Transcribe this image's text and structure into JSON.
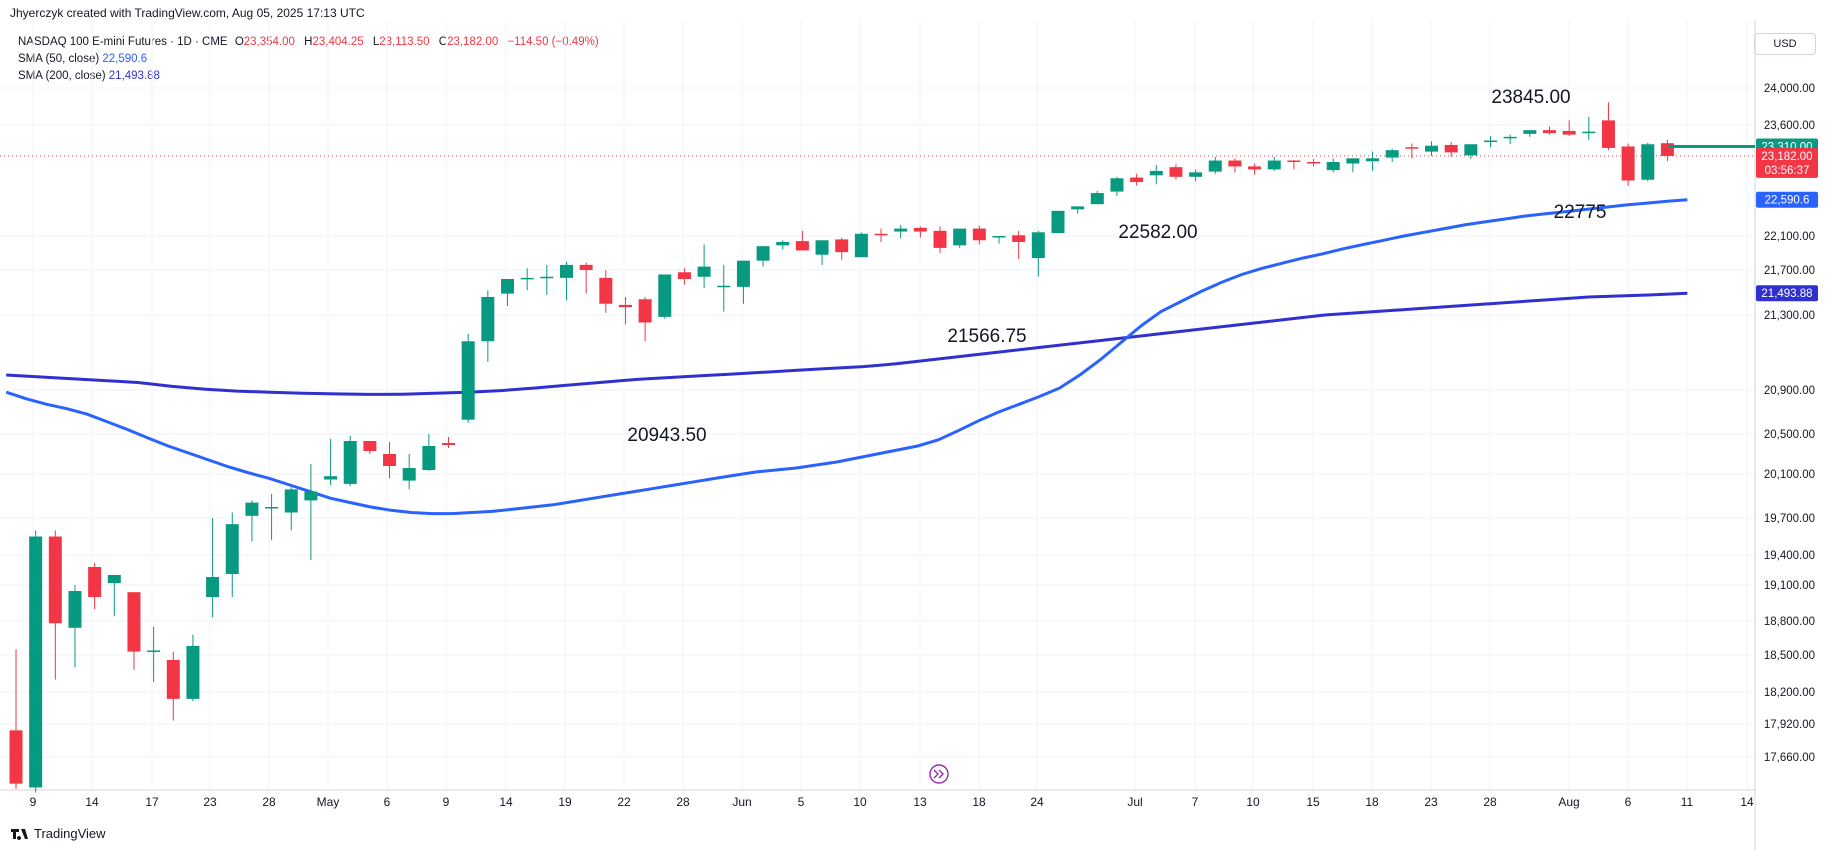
{
  "header": {
    "text": "Jhyerczyk created with TradingView.com, Aug 05, 2025 17:13 UTC"
  },
  "legend": {
    "symbol": "NASDAQ 100 E-mini Futures · 1D · CME",
    "open_label": "O",
    "open": "23,354.00",
    "high_label": "H",
    "high": "23,404.25",
    "low_label": "L",
    "low": "23,113.50",
    "close_label": "C",
    "close": "23,182.00",
    "change": "−114.50 (−0.49%)",
    "sma50_label": "SMA (50, close)",
    "sma50_value": "22,590.6",
    "sma200_label": "SMA (200, close)",
    "sma200_value": "21,493.88"
  },
  "currency": "USD",
  "footer": {
    "brand": "TradingView"
  },
  "colors": {
    "up": "#089981",
    "down": "#f23645",
    "sma50": "#2962ff",
    "sma200": "#3030d0",
    "grid": "#f0f3fa"
  },
  "chart_data": {
    "type": "candlestick",
    "y_axis_ticks": [
      24000,
      23600,
      22100,
      21700,
      21300,
      20900,
      20500,
      20100,
      19700,
      19400,
      19100,
      18800,
      18500,
      18200,
      17920,
      17660
    ],
    "y_axis_tick_labels": [
      "24,000.00",
      "23,600.00",
      "22,100.00",
      "21,700.00",
      "21,300.00",
      "20,900.00",
      "20,500.00",
      "20,100.00",
      "19,700.00",
      "19,400.00",
      "19,100.00",
      "18,800.00",
      "18,500.00",
      "18,200.00",
      "17,920.00",
      "17,660.00"
    ],
    "x_axis_labels": [
      "9",
      "14",
      "17",
      "23",
      "28",
      "May",
      "6",
      "9",
      "14",
      "19",
      "22",
      "28",
      "Jun",
      "5",
      "10",
      "13",
      "18",
      "24",
      "Jul",
      "7",
      "10",
      "15",
      "18",
      "23",
      "28",
      "Aug",
      "6",
      "11",
      "14"
    ],
    "candles": [
      {
        "o": 17870,
        "h": 18550,
        "l": 17410,
        "c": 17450
      },
      {
        "o": 17420,
        "h": 19600,
        "l": 17380,
        "c": 19550
      },
      {
        "o": 19550,
        "h": 19600,
        "l": 18300,
        "c": 18780
      },
      {
        "o": 18740,
        "h": 19100,
        "l": 18400,
        "c": 19050
      },
      {
        "o": 19280,
        "h": 19320,
        "l": 18900,
        "c": 19000
      },
      {
        "o": 19120,
        "h": 19200,
        "l": 18840,
        "c": 19200
      },
      {
        "o": 19040,
        "h": 19040,
        "l": 18380,
        "c": 18530
      },
      {
        "o": 18540,
        "h": 18750,
        "l": 18280,
        "c": 18540
      },
      {
        "o": 18460,
        "h": 18530,
        "l": 17950,
        "c": 18140
      },
      {
        "o": 18140,
        "h": 18680,
        "l": 18120,
        "c": 18580
      },
      {
        "o": 19000,
        "h": 19700,
        "l": 18830,
        "c": 19180
      },
      {
        "o": 19210,
        "h": 19750,
        "l": 19000,
        "c": 19650
      },
      {
        "o": 19720,
        "h": 19860,
        "l": 19510,
        "c": 19840
      },
      {
        "o": 19800,
        "h": 19920,
        "l": 19520,
        "c": 19800
      },
      {
        "o": 19750,
        "h": 19980,
        "l": 19600,
        "c": 19960
      },
      {
        "o": 19860,
        "h": 20200,
        "l": 19350,
        "c": 19940
      },
      {
        "o": 20050,
        "h": 20450,
        "l": 20000,
        "c": 20080
      },
      {
        "o": 20010,
        "h": 20480,
        "l": 19990,
        "c": 20430
      },
      {
        "o": 20430,
        "h": 20430,
        "l": 20300,
        "c": 20330
      },
      {
        "o": 20300,
        "h": 20420,
        "l": 20060,
        "c": 20180
      },
      {
        "o": 20040,
        "h": 20300,
        "l": 19960,
        "c": 20160
      },
      {
        "o": 20140,
        "h": 20500,
        "l": 20130,
        "c": 20380
      },
      {
        "o": 20410,
        "h": 20470,
        "l": 20360,
        "c": 20390
      },
      {
        "o": 20630,
        "h": 21200,
        "l": 20600,
        "c": 21160
      },
      {
        "o": 21160,
        "h": 21520,
        "l": 21050,
        "c": 21460
      },
      {
        "o": 21490,
        "h": 21620,
        "l": 21380,
        "c": 21620
      },
      {
        "o": 21620,
        "h": 21720,
        "l": 21520,
        "c": 21630
      },
      {
        "o": 21630,
        "h": 21760,
        "l": 21480,
        "c": 21640
      },
      {
        "o": 21630,
        "h": 21800,
        "l": 21430,
        "c": 21760
      },
      {
        "o": 21760,
        "h": 21790,
        "l": 21490,
        "c": 21700
      },
      {
        "o": 21630,
        "h": 21700,
        "l": 21320,
        "c": 21400
      },
      {
        "o": 21390,
        "h": 21460,
        "l": 21250,
        "c": 21370
      },
      {
        "o": 21440,
        "h": 21460,
        "l": 21160,
        "c": 21260
      },
      {
        "o": 21290,
        "h": 21660,
        "l": 21280,
        "c": 21660
      },
      {
        "o": 21680,
        "h": 21720,
        "l": 21570,
        "c": 21620
      },
      {
        "o": 21640,
        "h": 22000,
        "l": 21540,
        "c": 21740
      },
      {
        "o": 21560,
        "h": 21760,
        "l": 21330,
        "c": 21560
      },
      {
        "o": 21550,
        "h": 21810,
        "l": 21400,
        "c": 21810
      },
      {
        "o": 21810,
        "h": 21980,
        "l": 21740,
        "c": 21980
      },
      {
        "o": 21990,
        "h": 22050,
        "l": 21940,
        "c": 22030
      },
      {
        "o": 22040,
        "h": 22170,
        "l": 21940,
        "c": 21930
      },
      {
        "o": 21880,
        "h": 22040,
        "l": 21760,
        "c": 22050
      },
      {
        "o": 22060,
        "h": 22080,
        "l": 21820,
        "c": 21910
      },
      {
        "o": 21850,
        "h": 22150,
        "l": 21850,
        "c": 22130
      },
      {
        "o": 22130,
        "h": 22200,
        "l": 22030,
        "c": 22110
      },
      {
        "o": 22160,
        "h": 22250,
        "l": 22070,
        "c": 22200
      },
      {
        "o": 22210,
        "h": 22230,
        "l": 22080,
        "c": 22160
      },
      {
        "o": 22170,
        "h": 22230,
        "l": 21900,
        "c": 21960
      },
      {
        "o": 21990,
        "h": 22200,
        "l": 21960,
        "c": 22200
      },
      {
        "o": 22200,
        "h": 22240,
        "l": 22000,
        "c": 22050
      },
      {
        "o": 22100,
        "h": 22100,
        "l": 22010,
        "c": 22100
      },
      {
        "o": 22110,
        "h": 22170,
        "l": 21830,
        "c": 22030
      },
      {
        "o": 21840,
        "h": 22170,
        "l": 21640,
        "c": 22150
      },
      {
        "o": 22140,
        "h": 22440,
        "l": 22140,
        "c": 22440
      },
      {
        "o": 22460,
        "h": 22500,
        "l": 22400,
        "c": 22500
      },
      {
        "o": 22530,
        "h": 22710,
        "l": 22530,
        "c": 22680
      },
      {
        "o": 22700,
        "h": 22900,
        "l": 22640,
        "c": 22880
      },
      {
        "o": 22890,
        "h": 22940,
        "l": 22780,
        "c": 22830
      },
      {
        "o": 22920,
        "h": 23060,
        "l": 22800,
        "c": 22980
      },
      {
        "o": 23030,
        "h": 23070,
        "l": 22860,
        "c": 22900
      },
      {
        "o": 22900,
        "h": 23000,
        "l": 22840,
        "c": 22960
      },
      {
        "o": 22970,
        "h": 23170,
        "l": 22940,
        "c": 23120
      },
      {
        "o": 23120,
        "h": 23150,
        "l": 22960,
        "c": 23040
      },
      {
        "o": 23040,
        "h": 23080,
        "l": 22930,
        "c": 23000
      },
      {
        "o": 23000,
        "h": 23170,
        "l": 22980,
        "c": 23120
      },
      {
        "o": 23120,
        "h": 23130,
        "l": 23000,
        "c": 23100
      },
      {
        "o": 23100,
        "h": 23140,
        "l": 23040,
        "c": 23090
      },
      {
        "o": 22990,
        "h": 23150,
        "l": 22960,
        "c": 23100
      },
      {
        "o": 23080,
        "h": 23140,
        "l": 22960,
        "c": 23150
      },
      {
        "o": 23110,
        "h": 23240,
        "l": 22980,
        "c": 23150
      },
      {
        "o": 23160,
        "h": 23280,
        "l": 23100,
        "c": 23260
      },
      {
        "o": 23300,
        "h": 23350,
        "l": 23150,
        "c": 23280
      },
      {
        "o": 23240,
        "h": 23380,
        "l": 23180,
        "c": 23320
      },
      {
        "o": 23330,
        "h": 23370,
        "l": 23170,
        "c": 23230
      },
      {
        "o": 23190,
        "h": 23330,
        "l": 23140,
        "c": 23340
      },
      {
        "o": 23380,
        "h": 23450,
        "l": 23300,
        "c": 23390
      },
      {
        "o": 23420,
        "h": 23470,
        "l": 23340,
        "c": 23440
      },
      {
        "o": 23480,
        "h": 23530,
        "l": 23440,
        "c": 23530
      },
      {
        "o": 23530,
        "h": 23580,
        "l": 23470,
        "c": 23490
      },
      {
        "o": 23520,
        "h": 23650,
        "l": 23450,
        "c": 23470
      },
      {
        "o": 23510,
        "h": 23690,
        "l": 23400,
        "c": 23510
      },
      {
        "o": 23650,
        "h": 23845,
        "l": 23260,
        "c": 23290
      },
      {
        "o": 23310,
        "h": 23350,
        "l": 22775,
        "c": 22850
      },
      {
        "o": 22860,
        "h": 23360,
        "l": 22840,
        "c": 23340
      },
      {
        "o": 23354,
        "h": 23404.25,
        "l": 23113.5,
        "c": 23182
      }
    ],
    "sma50": [
      20880,
      20820,
      20770,
      20730,
      20680,
      20610,
      20540,
      20460,
      20380,
      20310,
      20240,
      20170,
      20110,
      20060,
      20000,
      19940,
      19880,
      19840,
      19800,
      19770,
      19750,
      19740,
      19740,
      19750,
      19760,
      19780,
      19800,
      19820,
      19850,
      19880,
      19910,
      19940,
      19970,
      20000,
      20030,
      20060,
      20090,
      20120,
      20140,
      20160,
      20190,
      20220,
      20260,
      20300,
      20340,
      20380,
      20440,
      20530,
      20620,
      20700,
      20770,
      20840,
      20910,
      20980,
      21060,
      21150,
      21240,
      21330,
      21420,
      21510,
      21590,
      21660,
      21720,
      21780,
      21840,
      21890,
      21950,
      22000,
      22050,
      22100,
      22150,
      22200,
      22250,
      22290,
      22330,
      22370,
      22400,
      22430,
      22460,
      22490,
      22520,
      22545,
      22570,
      22590
    ],
    "sma200": [
      20980,
      20970,
      20960,
      20950,
      20940,
      20920,
      20905,
      20890,
      20880,
      20870,
      20865,
      20860,
      20862,
      20870,
      20880,
      20895,
      20910,
      20925,
      20940,
      20955,
      20965,
      20975,
      20985,
      20995,
      21005,
      21015,
      21025,
      21040,
      21060,
      21080,
      21100,
      21120,
      21140,
      21160,
      21180,
      21200,
      21220,
      21240,
      21260,
      21280,
      21300,
      21320,
      21340,
      21360,
      21380,
      21400,
      21420,
      21440,
      21460,
      21470,
      21480,
      21493.88
    ],
    "annotations": [
      {
        "label": "23845.00",
        "price": 23845
      },
      {
        "label": "22775",
        "price": 22775
      },
      {
        "label": "22582.00",
        "price": 22582
      },
      {
        "label": "21566.75",
        "price": 21566.75
      },
      {
        "label": "20943.50",
        "price": 20943.5
      }
    ],
    "price_tags": [
      {
        "value": "23,310.00",
        "sub": "",
        "color": "#089981"
      },
      {
        "value": "23,182.00",
        "sub": "03:56:37",
        "color": "#f23645"
      },
      {
        "value": "22,590.6",
        "sub": "",
        "color": "#2962ff"
      },
      {
        "value": "21,493.88",
        "sub": "",
        "color": "#3030d0"
      }
    ]
  }
}
